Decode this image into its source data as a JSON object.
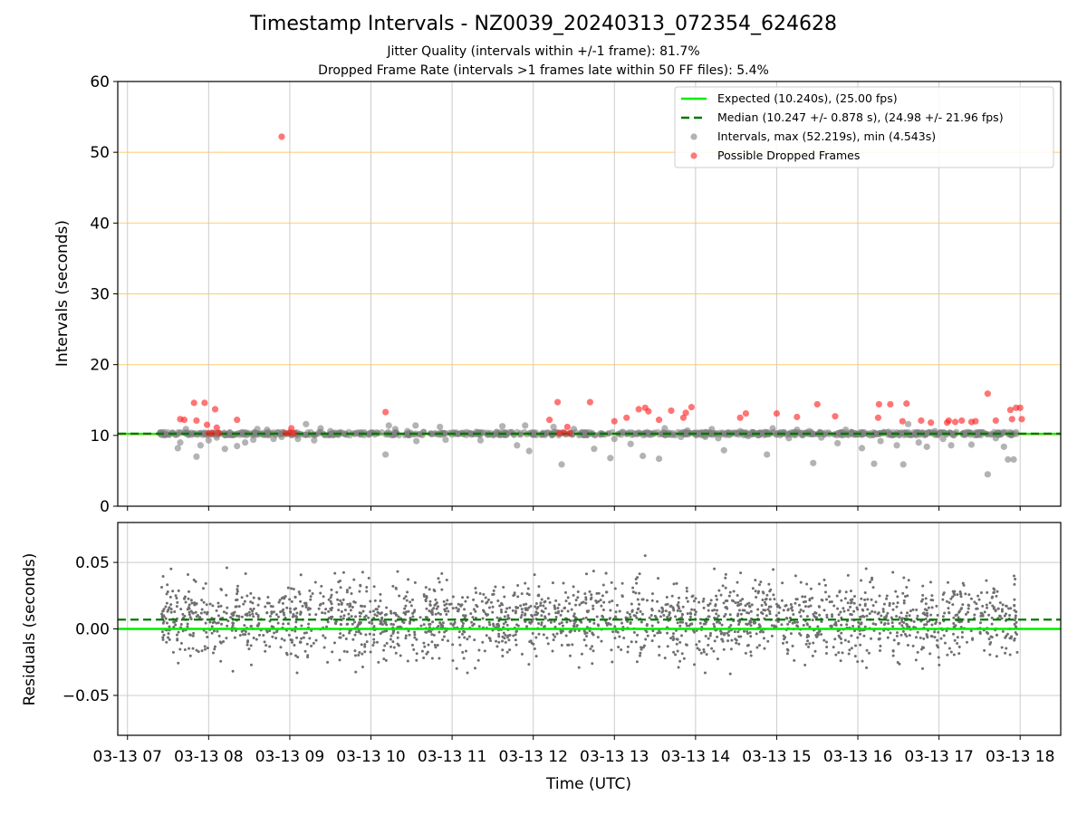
{
  "title": "Timestamp Intervals - NZ0039_20240313_072354_624628",
  "subtitle_jitter": "Jitter Quality (intervals within +/-1 frame): 81.7%",
  "subtitle_dropped": "Dropped Frame Rate (intervals >1 frames late within 50 FF files): 5.4%",
  "colors": {
    "expected": "#00ee00",
    "median": "#007700",
    "intervals": "#808080",
    "dropped": "#ff2020",
    "hgrid": "#ffd27f",
    "vgrid": "#cccccc"
  },
  "chart_data": [
    {
      "type": "scatter",
      "ylabel": "Intervals (seconds)",
      "xlabel": "",
      "ylim": [
        0,
        60
      ],
      "yticks": [
        0,
        10,
        20,
        30,
        40,
        50,
        60
      ],
      "xlim_hours": [
        6.88,
        18.5
      ],
      "grid": "on",
      "legend_placement": "top-right",
      "legend": [
        "Expected (10.240s), (25.00 fps)",
        "Median (10.247 +/- 0.878 s), (24.98 +/- 21.96 fps)",
        "Intervals, max (52.219s), min (4.543s)",
        "Possible Dropped Frames"
      ],
      "expected_interval": 10.24,
      "median_interval": 10.247,
      "interval_max": 52.219,
      "interval_min": 4.543,
      "time_range_hours": [
        7.4,
        17.95
      ],
      "series": [
        {
          "name": "Intervals, max (52.219s), min (4.543s)",
          "points": [
            [
              7.45,
              10.2
            ],
            [
              7.62,
              8.2
            ],
            [
              7.65,
              9.0
            ],
            [
              7.72,
              10.9
            ],
            [
              7.85,
              7.0
            ],
            [
              7.9,
              8.6
            ],
            [
              8.0,
              9.3
            ],
            [
              8.1,
              9.7
            ],
            [
              8.2,
              8.1
            ],
            [
              8.35,
              8.5
            ],
            [
              8.45,
              9.0
            ],
            [
              8.55,
              9.4
            ],
            [
              8.6,
              10.9
            ],
            [
              8.72,
              10.8
            ],
            [
              8.8,
              9.5
            ],
            [
              8.9,
              9.8
            ],
            [
              9.0,
              10.4
            ],
            [
              9.1,
              9.5
            ],
            [
              9.2,
              11.6
            ],
            [
              9.3,
              9.3
            ],
            [
              9.38,
              11.0
            ],
            [
              9.5,
              10.6
            ],
            [
              9.65,
              10.3
            ],
            [
              9.8,
              10.2
            ],
            [
              10.0,
              10.4
            ],
            [
              10.18,
              7.3
            ],
            [
              10.22,
              11.4
            ],
            [
              10.3,
              10.9
            ],
            [
              10.45,
              10.6
            ],
            [
              10.55,
              11.4
            ],
            [
              10.56,
              9.2
            ],
            [
              10.65,
              10.5
            ],
            [
              10.85,
              11.2
            ],
            [
              10.92,
              9.4
            ],
            [
              11.05,
              10.4
            ],
            [
              11.3,
              10.5
            ],
            [
              11.35,
              9.3
            ],
            [
              11.55,
              10.5
            ],
            [
              11.62,
              11.3
            ],
            [
              11.8,
              8.6
            ],
            [
              11.9,
              11.4
            ],
            [
              11.95,
              7.8
            ],
            [
              12.18,
              10.4
            ],
            [
              12.25,
              11.2
            ],
            [
              12.35,
              5.9
            ],
            [
              12.5,
              10.9
            ],
            [
              12.6,
              10.4
            ],
            [
              12.75,
              8.1
            ],
            [
              12.85,
              10.2
            ],
            [
              12.95,
              6.8
            ],
            [
              13.0,
              9.5
            ],
            [
              13.1,
              10.5
            ],
            [
              13.2,
              8.8
            ],
            [
              13.3,
              10.4
            ],
            [
              13.35,
              7.1
            ],
            [
              13.45,
              10.1
            ],
            [
              13.55,
              6.7
            ],
            [
              13.62,
              11.0
            ],
            [
              13.72,
              10.3
            ],
            [
              13.82,
              9.8
            ],
            [
              13.9,
              10.7
            ],
            [
              14.0,
              10.1
            ],
            [
              14.12,
              9.8
            ],
            [
              14.2,
              10.9
            ],
            [
              14.28,
              9.6
            ],
            [
              14.35,
              7.9
            ],
            [
              14.45,
              10.3
            ],
            [
              14.55,
              10.6
            ],
            [
              14.65,
              9.9
            ],
            [
              14.78,
              10.0
            ],
            [
              14.88,
              7.3
            ],
            [
              14.95,
              11.0
            ],
            [
              15.0,
              10.2
            ],
            [
              15.15,
              9.6
            ],
            [
              15.25,
              10.8
            ],
            [
              15.4,
              10.6
            ],
            [
              15.45,
              6.1
            ],
            [
              15.55,
              9.7
            ],
            [
              15.65,
              10.2
            ],
            [
              15.75,
              8.9
            ],
            [
              15.85,
              10.8
            ],
            [
              15.92,
              10.3
            ],
            [
              16.05,
              8.2
            ],
            [
              16.15,
              10.0
            ],
            [
              16.2,
              6.0
            ],
            [
              16.28,
              9.2
            ],
            [
              16.38,
              10.5
            ],
            [
              16.48,
              8.6
            ],
            [
              16.56,
              5.9
            ],
            [
              16.62,
              11.6
            ],
            [
              16.75,
              9.0
            ],
            [
              16.85,
              8.4
            ],
            [
              16.95,
              10.6
            ],
            [
              17.05,
              9.5
            ],
            [
              17.15,
              8.6
            ],
            [
              17.3,
              10.1
            ],
            [
              17.4,
              8.7
            ],
            [
              17.5,
              10.3
            ],
            [
              17.6,
              4.5
            ],
            [
              17.7,
              9.6
            ],
            [
              17.8,
              8.4
            ],
            [
              17.85,
              6.6
            ],
            [
              17.92,
              6.6
            ],
            [
              17.95,
              10.2
            ]
          ]
        },
        {
          "name": "Possible Dropped Frames",
          "points": [
            [
              7.65,
              12.3
            ],
            [
              7.7,
              12.2
            ],
            [
              7.82,
              14.6
            ],
            [
              7.85,
              12.1
            ],
            [
              7.95,
              14.6
            ],
            [
              7.98,
              11.5
            ],
            [
              8.0,
              10.3
            ],
            [
              8.05,
              10.3
            ],
            [
              8.08,
              13.7
            ],
            [
              8.1,
              11.1
            ],
            [
              8.13,
              10.3
            ],
            [
              8.35,
              12.2
            ],
            [
              8.9,
              52.2
            ],
            [
              8.95,
              10.3
            ],
            [
              9.0,
              10.3
            ],
            [
              9.02,
              11.0
            ],
            [
              9.05,
              10.3
            ],
            [
              10.18,
              13.3
            ],
            [
              12.2,
              12.2
            ],
            [
              12.3,
              14.7
            ],
            [
              12.32,
              10.3
            ],
            [
              12.38,
              10.4
            ],
            [
              12.42,
              11.2
            ],
            [
              12.45,
              10.3
            ],
            [
              12.7,
              14.7
            ],
            [
              13.0,
              12.0
            ],
            [
              13.15,
              12.5
            ],
            [
              13.3,
              13.7
            ],
            [
              13.38,
              13.9
            ],
            [
              13.42,
              13.4
            ],
            [
              13.55,
              12.2
            ],
            [
              13.7,
              13.5
            ],
            [
              13.85,
              12.5
            ],
            [
              13.88,
              13.2
            ],
            [
              13.95,
              14.0
            ],
            [
              14.55,
              12.5
            ],
            [
              14.62,
              13.1
            ],
            [
              15.0,
              13.1
            ],
            [
              15.25,
              12.6
            ],
            [
              15.5,
              14.4
            ],
            [
              15.72,
              12.7
            ],
            [
              16.25,
              12.5
            ],
            [
              16.26,
              14.4
            ],
            [
              16.4,
              14.4
            ],
            [
              16.55,
              12.0
            ],
            [
              16.6,
              14.5
            ],
            [
              16.78,
              12.1
            ],
            [
              16.9,
              11.8
            ],
            [
              17.1,
              11.8
            ],
            [
              17.12,
              12.1
            ],
            [
              17.2,
              11.9
            ],
            [
              17.28,
              12.1
            ],
            [
              17.4,
              11.9
            ],
            [
              17.45,
              12.0
            ],
            [
              17.6,
              15.9
            ],
            [
              17.7,
              12.1
            ],
            [
              17.88,
              13.6
            ],
            [
              17.9,
              12.3
            ],
            [
              17.95,
              13.9
            ],
            [
              18.0,
              13.9
            ],
            [
              18.02,
              12.3
            ]
          ]
        }
      ]
    },
    {
      "type": "scatter",
      "ylabel": "Residuals (seconds)",
      "xlabel": "Time (UTC)",
      "ylim": [
        -0.08,
        0.08
      ],
      "yticks": [
        0.05,
        0.0,
        -0.05
      ],
      "ytick_labels": [
        "0.05",
        "0.00",
        "−0.05"
      ],
      "xlim_hours": [
        6.88,
        18.5
      ],
      "xtick_hours": [
        7,
        8,
        9,
        10,
        11,
        12,
        13,
        14,
        15,
        16,
        17,
        18
      ],
      "xtick_labels": [
        "03-13 07",
        "03-13 08",
        "03-13 09",
        "03-13 10",
        "03-13 11",
        "03-13 12",
        "03-13 13",
        "03-13 14",
        "03-13 15",
        "03-13 16",
        "03-13 17",
        "03-13 18"
      ],
      "grid": "on",
      "expected_residual": 0.0,
      "median_residual": 0.007,
      "residual_spread": 0.02,
      "residual_count": 2200,
      "time_range_hours": [
        7.42,
        17.97
      ]
    }
  ]
}
